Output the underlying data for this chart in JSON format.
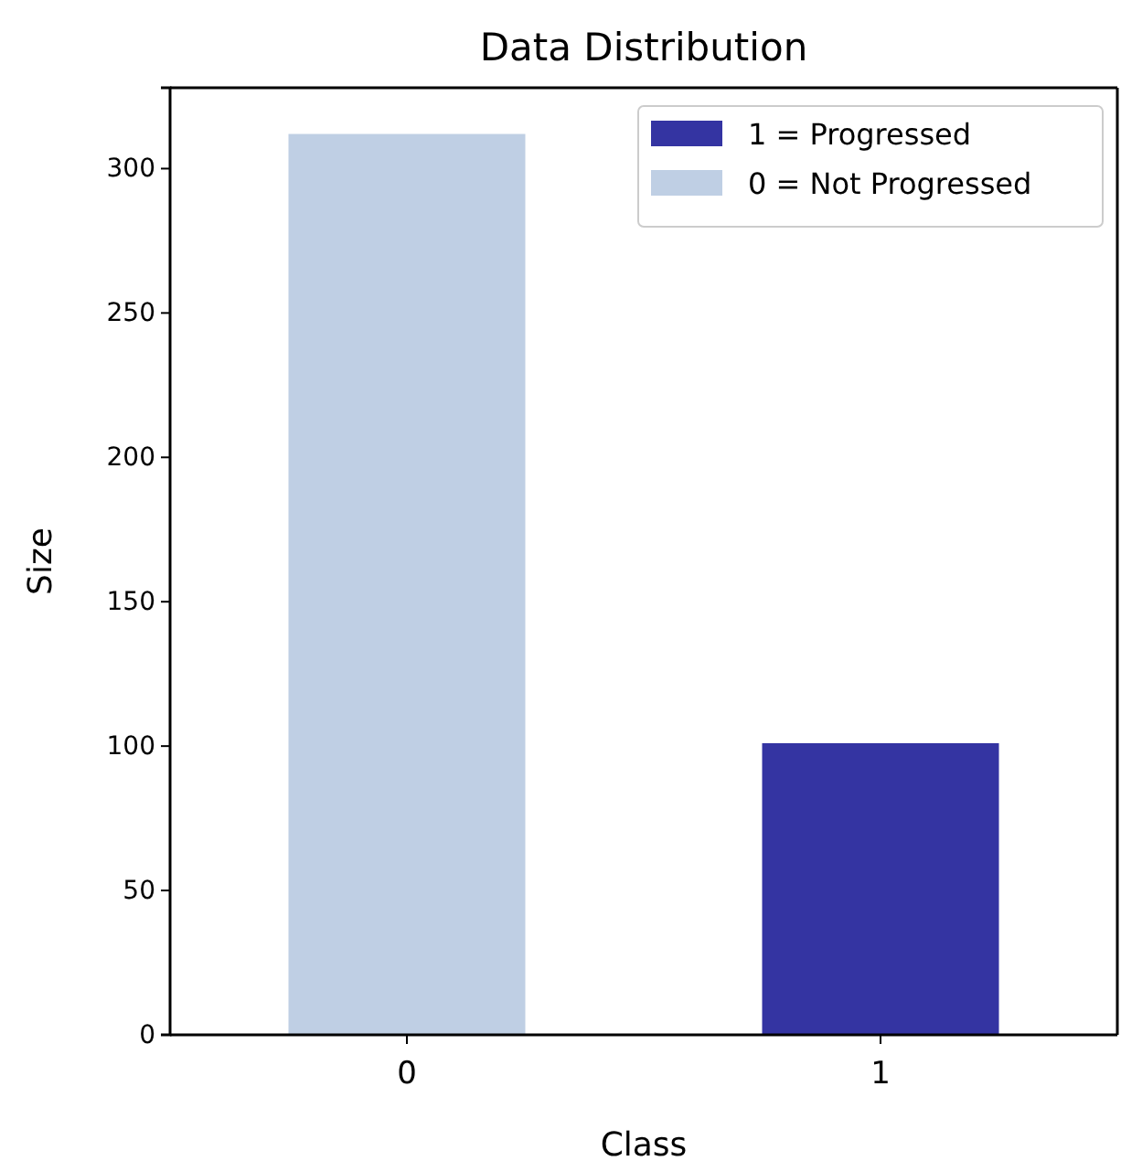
{
  "chart_data": {
    "type": "bar",
    "title": "Data Distribution",
    "xlabel": "Class",
    "ylabel": "Size",
    "categories": [
      "0",
      "1"
    ],
    "series": [
      {
        "name": "1 = Progressed",
        "color": "#3434a2",
        "values": [
          null,
          101
        ]
      },
      {
        "name": "0 = Not Progressed",
        "color": "#bfcfe4",
        "values": [
          312,
          null
        ]
      }
    ],
    "ylim": [
      0,
      328
    ],
    "yticks": [
      0,
      50,
      100,
      150,
      200,
      250,
      300
    ],
    "legend": "top right",
    "grid": false
  }
}
